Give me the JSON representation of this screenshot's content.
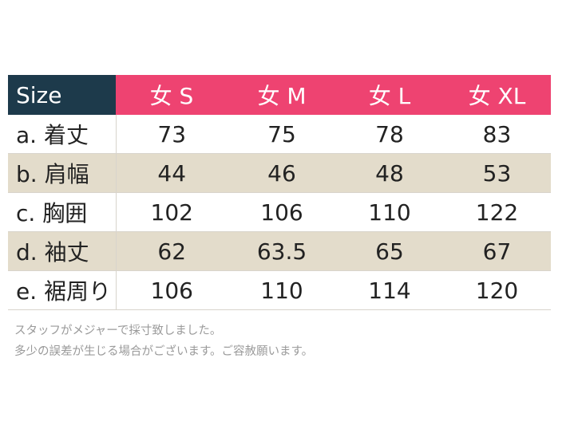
{
  "table": {
    "header": [
      "Size",
      "女 S",
      "女 M",
      "女 L",
      "女 XL"
    ],
    "rows": [
      {
        "label": "a. 着丈",
        "values": [
          "73",
          "75",
          "78",
          "83"
        ]
      },
      {
        "label": "b. 肩幅",
        "values": [
          "44",
          "46",
          "48",
          "53"
        ]
      },
      {
        "label": "c. 胸囲",
        "values": [
          "102",
          "106",
          "110",
          "122"
        ]
      },
      {
        "label": "d. 袖丈",
        "values": [
          "62",
          "63.5",
          "65",
          "67"
        ]
      },
      {
        "label": "e. 裾周り",
        "values": [
          "106",
          "110",
          "114",
          "120"
        ]
      }
    ]
  },
  "notes": {
    "line1": "スタッフがメジャーで採寸致しました。",
    "line2": "多少の誤差が生じる場合がございます。ご容赦願います。"
  },
  "colors": {
    "header_label_bg": "#1d3a4b",
    "header_size_bg": "#ee4371",
    "shaded_row_bg": "#e3dccb"
  }
}
